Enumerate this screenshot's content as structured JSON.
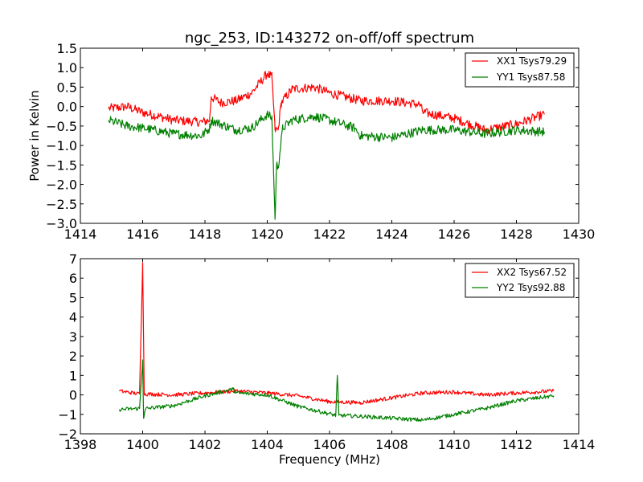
{
  "chart_data": [
    {
      "type": "line",
      "title": "ngc_253, ID:143272 on-off/off spectrum",
      "xlabel": "",
      "ylabel": "Power in Kelvin",
      "xlim": [
        1414,
        1430
      ],
      "ylim": [
        -3.0,
        1.5
      ],
      "xticks": [
        "1414",
        "1416",
        "1418",
        "1420",
        "1422",
        "1424",
        "1426",
        "1428",
        "1430"
      ],
      "yticks": [
        "1.5",
        "1.0",
        "0.5",
        "0.0",
        "−0.5",
        "−1.0",
        "−1.5",
        "−2.0",
        "−2.5",
        "−3.0"
      ],
      "xtick_values": [
        1414,
        1416,
        1418,
        1420,
        1422,
        1424,
        1426,
        1428,
        1430
      ],
      "ytick_values": [
        1.5,
        1.0,
        0.5,
        0.0,
        -0.5,
        -1.0,
        -1.5,
        -2.0,
        -2.5,
        -3.0
      ],
      "grid": false,
      "legend_position": "top-right",
      "series": [
        {
          "name": "XX1 Tsys79.29",
          "color": "#ff0000",
          "noise": 0.12,
          "points": [
            [
              1414.9,
              -0.05
            ],
            [
              1415.5,
              0.0
            ],
            [
              1416.0,
              -0.15
            ],
            [
              1417.0,
              -0.35
            ],
            [
              1417.9,
              -0.4
            ],
            [
              1418.15,
              -0.35
            ],
            [
              1418.2,
              0.25
            ],
            [
              1418.5,
              0.1
            ],
            [
              1419.0,
              0.15
            ],
            [
              1419.5,
              0.35
            ],
            [
              1420.0,
              0.85
            ],
            [
              1420.15,
              0.75
            ],
            [
              1420.25,
              -0.6
            ],
            [
              1420.35,
              -0.6
            ],
            [
              1420.45,
              0.1
            ],
            [
              1420.8,
              0.45
            ],
            [
              1421.5,
              0.5
            ],
            [
              1422.0,
              0.35
            ],
            [
              1422.5,
              0.25
            ],
            [
              1423.0,
              0.15
            ],
            [
              1424.0,
              0.15
            ],
            [
              1424.9,
              0.05
            ],
            [
              1425.0,
              -0.15
            ],
            [
              1426.0,
              -0.3
            ],
            [
              1427.0,
              -0.6
            ],
            [
              1428.0,
              -0.45
            ],
            [
              1428.9,
              -0.2
            ]
          ]
        },
        {
          "name": "YY1 Tsys87.58",
          "color": "#008000",
          "noise": 0.12,
          "points": [
            [
              1414.9,
              -0.35
            ],
            [
              1415.5,
              -0.5
            ],
            [
              1416.0,
              -0.55
            ],
            [
              1417.0,
              -0.7
            ],
            [
              1417.9,
              -0.75
            ],
            [
              1418.15,
              -0.55
            ],
            [
              1418.2,
              -0.35
            ],
            [
              1418.5,
              -0.45
            ],
            [
              1419.0,
              -0.6
            ],
            [
              1419.5,
              -0.55
            ],
            [
              1420.0,
              -0.2
            ],
            [
              1420.15,
              -0.3
            ],
            [
              1420.25,
              -2.9
            ],
            [
              1420.3,
              -1.5
            ],
            [
              1420.35,
              -1.55
            ],
            [
              1420.5,
              -0.55
            ],
            [
              1420.8,
              -0.35
            ],
            [
              1421.5,
              -0.25
            ],
            [
              1422.0,
              -0.35
            ],
            [
              1422.8,
              -0.55
            ],
            [
              1423.0,
              -0.75
            ],
            [
              1424.0,
              -0.8
            ],
            [
              1425.0,
              -0.6
            ],
            [
              1426.0,
              -0.6
            ],
            [
              1427.0,
              -0.7
            ],
            [
              1428.0,
              -0.6
            ],
            [
              1428.9,
              -0.65
            ]
          ]
        }
      ]
    },
    {
      "type": "line",
      "title": "",
      "xlabel": "Frequency (MHz)",
      "ylabel": "",
      "xlim": [
        1398,
        1414
      ],
      "ylim": [
        -2,
        7
      ],
      "xticks": [
        "1398",
        "1400",
        "1402",
        "1404",
        "1406",
        "1408",
        "1410",
        "1412",
        "1414"
      ],
      "yticks": [
        "7",
        "6",
        "5",
        "4",
        "3",
        "2",
        "1",
        "0",
        "−1",
        "−2"
      ],
      "xtick_values": [
        1398,
        1400,
        1402,
        1404,
        1406,
        1408,
        1410,
        1412,
        1414
      ],
      "ytick_values": [
        7,
        6,
        5,
        4,
        3,
        2,
        1,
        0,
        -1,
        -2
      ],
      "grid": false,
      "legend_position": "top-right",
      "series": [
        {
          "name": "XX2 Tsys67.52",
          "color": "#ff0000",
          "noise": 0.1,
          "points": [
            [
              1399.25,
              0.2
            ],
            [
              1399.9,
              0.05
            ],
            [
              1400.0,
              6.8
            ],
            [
              1400.05,
              0.05
            ],
            [
              1401.0,
              0.0
            ],
            [
              1402.0,
              0.1
            ],
            [
              1403.0,
              0.2
            ],
            [
              1404.0,
              0.1
            ],
            [
              1405.0,
              -0.05
            ],
            [
              1406.0,
              -0.35
            ],
            [
              1407.0,
              -0.4
            ],
            [
              1408.0,
              -0.15
            ],
            [
              1409.0,
              0.1
            ],
            [
              1410.0,
              0.15
            ],
            [
              1411.0,
              0.0
            ],
            [
              1412.0,
              0.1
            ],
            [
              1413.2,
              0.2
            ]
          ]
        },
        {
          "name": "YY2 Tsys92.88",
          "color": "#008000",
          "noise": 0.1,
          "points": [
            [
              1399.25,
              -0.75
            ],
            [
              1399.9,
              -0.7
            ],
            [
              1400.0,
              1.8
            ],
            [
              1400.03,
              -1.2
            ],
            [
              1400.1,
              -0.7
            ],
            [
              1401.0,
              -0.55
            ],
            [
              1402.0,
              -0.05
            ],
            [
              1402.9,
              0.3
            ],
            [
              1403.0,
              0.1
            ],
            [
              1404.0,
              0.0
            ],
            [
              1405.0,
              -0.6
            ],
            [
              1406.2,
              -1.05
            ],
            [
              1406.25,
              1.0
            ],
            [
              1406.3,
              -1.05
            ],
            [
              1407.0,
              -1.1
            ],
            [
              1408.0,
              -1.2
            ],
            [
              1409.0,
              -1.3
            ],
            [
              1410.0,
              -1.0
            ],
            [
              1411.0,
              -0.7
            ],
            [
              1412.0,
              -0.3
            ],
            [
              1413.2,
              -0.05
            ]
          ]
        }
      ]
    }
  ]
}
